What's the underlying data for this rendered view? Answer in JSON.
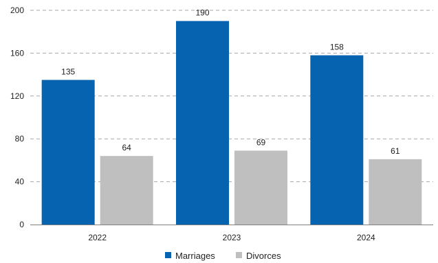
{
  "chart_data": {
    "type": "bar",
    "categories": [
      "2022",
      "2023",
      "2024"
    ],
    "series": [
      {
        "name": "Marriages",
        "values": [
          135,
          190,
          158
        ],
        "color": "#0563b0"
      },
      {
        "name": "Divorces",
        "values": [
          64,
          69,
          61
        ],
        "color": "#bfbfbf"
      }
    ],
    "ylim": [
      0,
      200
    ],
    "yticks": [
      0,
      40,
      80,
      120,
      160,
      200
    ],
    "grid": true,
    "legend_position": "bottom",
    "data_labels": true
  }
}
